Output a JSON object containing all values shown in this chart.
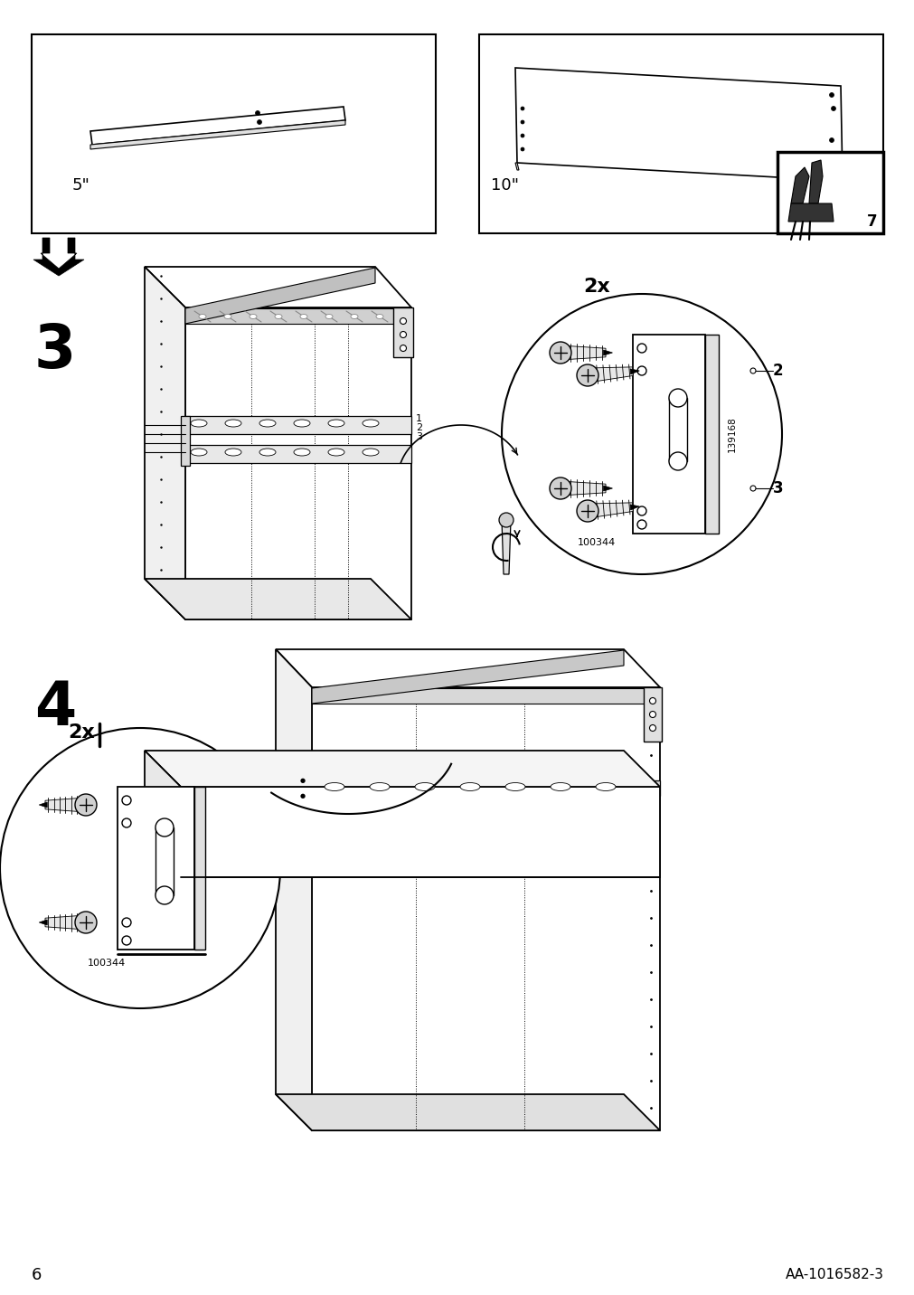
{
  "page_number": "6",
  "page_ref": "AA-1016582-3",
  "bg": "#ffffff",
  "lc": "#000000"
}
